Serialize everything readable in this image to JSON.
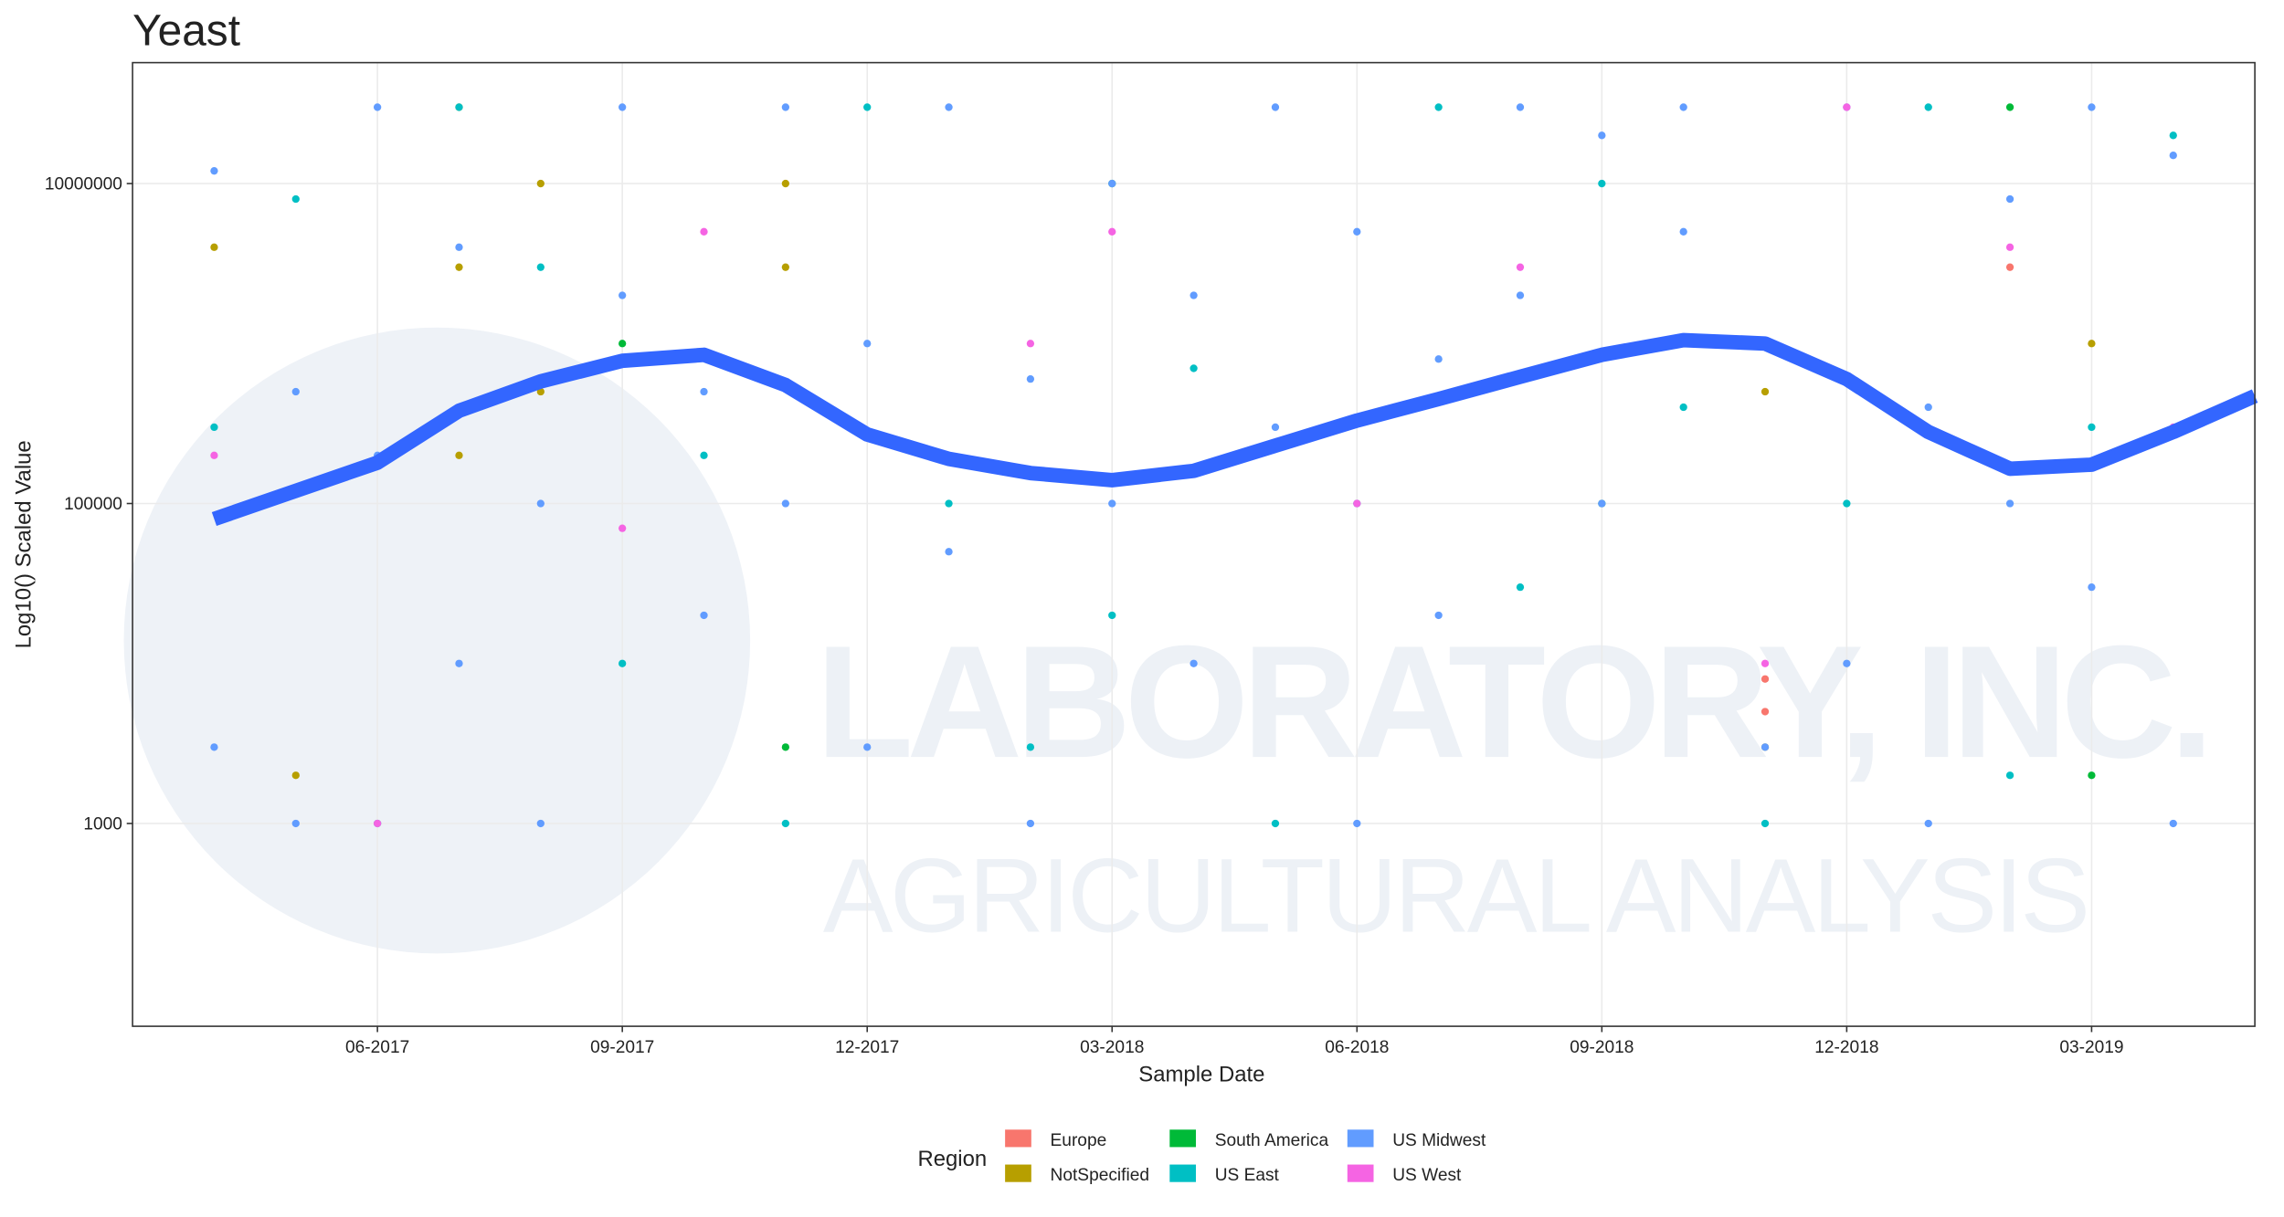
{
  "chart_data": {
    "type": "scatter",
    "title": "Yeast",
    "x_label": "Sample Date",
    "y_label": "Log10() Scaled Value",
    "y_log": true,
    "grid": true,
    "ylim": [
      54,
      57000000
    ],
    "yticks": [
      1000,
      100000,
      10000000
    ],
    "xlim": [
      "2017-03",
      "2019-05"
    ],
    "xticks": [
      {
        "value": "2017-06",
        "label": "06-2017"
      },
      {
        "value": "2017-09",
        "label": "09-2017"
      },
      {
        "value": "2017-12",
        "label": "12-2017"
      },
      {
        "value": "2018-03",
        "label": "03-2018"
      },
      {
        "value": "2018-06",
        "label": "06-2018"
      },
      {
        "value": "2018-09",
        "label": "09-2018"
      },
      {
        "value": "2018-12",
        "label": "12-2018"
      },
      {
        "value": "2019-03",
        "label": "03-2019"
      }
    ],
    "legend_title": "Region",
    "legend_position": "bottom",
    "watermark": [
      "LABORATORY, INC.",
      "AGRICULTURAL ANALYSIS"
    ],
    "series": [
      {
        "name": "Europe",
        "color": "#f8766d",
        "x": [
          "2018-11",
          "2019-02",
          "2018-11"
        ],
        "values": [
          8000,
          3000000,
          5000
        ]
      },
      {
        "name": "NotSpecified",
        "color": "#b79f00",
        "x": [
          "2017-04",
          "2017-05",
          "2017-07",
          "2017-07",
          "2017-07",
          "2017-08",
          "2017-08",
          "2017-11",
          "2017-11",
          "2018-11",
          "2018-11",
          "2019-03"
        ],
        "values": [
          4000000,
          2000,
          30000000,
          3000000,
          200000,
          10000000,
          500000,
          10000000,
          3000000,
          3000,
          500000,
          1000000
        ]
      },
      {
        "name": "South America",
        "color": "#00ba38",
        "x": [
          "2017-09",
          "2017-11",
          "2018-03",
          "2018-09",
          "2019-02",
          "2019-03"
        ],
        "values": [
          1000000,
          3000,
          10000000,
          100000,
          30000000,
          2000
        ]
      },
      {
        "name": "US East",
        "color": "#00bfc4",
        "x": [
          "2017-04",
          "2017-05",
          "2017-06",
          "2017-07",
          "2017-08",
          "2017-09",
          "2017-10",
          "2017-11",
          "2017-12",
          "2018-01",
          "2018-02",
          "2018-03",
          "2018-04",
          "2018-05",
          "2018-06",
          "2018-07",
          "2018-08",
          "2018-09",
          "2018-10",
          "2018-11",
          "2018-12",
          "2019-01",
          "2019-02",
          "2019-03",
          "2019-04"
        ],
        "values": [
          300000,
          8000000,
          1000,
          30000000,
          3000000,
          10000,
          200000,
          1000,
          30000000,
          100000,
          3000,
          20000,
          700000,
          1000,
          100000,
          30000000,
          30000,
          10000000,
          400000,
          1000,
          100000,
          30000000,
          2000,
          300000,
          20000000
        ]
      },
      {
        "name": "US Midwest",
        "color": "#619cff",
        "x": [
          "2017-04",
          "2017-04",
          "2017-05",
          "2017-05",
          "2017-06",
          "2017-06",
          "2017-07",
          "2017-07",
          "2017-08",
          "2017-08",
          "2017-09",
          "2017-09",
          "2017-10",
          "2017-10",
          "2017-11",
          "2017-11",
          "2017-12",
          "2017-12",
          "2018-01",
          "2018-01",
          "2018-02",
          "2018-02",
          "2018-03",
          "2018-03",
          "2018-04",
          "2018-04",
          "2018-05",
          "2018-05",
          "2018-06",
          "2018-06",
          "2018-07",
          "2018-07",
          "2018-08",
          "2018-08",
          "2018-09",
          "2018-09",
          "2018-10",
          "2018-10",
          "2018-11",
          "2018-11",
          "2018-12",
          "2018-12",
          "2019-01",
          "2019-01",
          "2019-02",
          "2019-02",
          "2019-03",
          "2019-03",
          "2019-04",
          "2019-04"
        ],
        "values": [
          12000000,
          3000,
          500000,
          1000,
          30000000,
          200000,
          4000000,
          10000,
          100000,
          1000,
          30000000,
          2000000,
          500000,
          20000,
          30000000,
          100000,
          1000000,
          3000,
          30000000,
          50000,
          600000,
          1000,
          10000000,
          100000,
          2000000,
          10000,
          30000000,
          300000,
          5000000,
          1000,
          800000,
          20000,
          30000000,
          2000000,
          20000000,
          100000,
          30000000,
          5000000,
          1000000,
          3000,
          30000000,
          10000,
          400000,
          1000,
          8000000,
          100000,
          30000000,
          30000,
          15000000,
          1000
        ]
      },
      {
        "name": "US West",
        "color": "#f564e3",
        "x": [
          "2017-04",
          "2017-06",
          "2017-09",
          "2017-10",
          "2018-02",
          "2018-03",
          "2018-06",
          "2018-08",
          "2018-11",
          "2018-12",
          "2019-02",
          "2019-04"
        ],
        "values": [
          200000,
          1000,
          70000,
          5000000,
          1000000,
          5000000,
          100000,
          3000000,
          10000,
          30000000,
          4000000,
          300000
        ]
      }
    ],
    "smooth": {
      "color": "#3366ff",
      "x": [
        "2017-04",
        "2017-05",
        "2017-06",
        "2017-07",
        "2017-08",
        "2017-09",
        "2017-10",
        "2017-11",
        "2017-12",
        "2018-01",
        "2018-02",
        "2018-03",
        "2018-04",
        "2018-05",
        "2018-06",
        "2018-07",
        "2018-08",
        "2018-09",
        "2018-10",
        "2018-11",
        "2018-12",
        "2019-01",
        "2019-02",
        "2019-03",
        "2019-04",
        "2019-05"
      ],
      "values": [
        80000,
        120000,
        180000,
        380000,
        580000,
        780000,
        850000,
        550000,
        270000,
        190000,
        155000,
        140000,
        160000,
        230000,
        330000,
        450000,
        620000,
        850000,
        1050000,
        1000000,
        600000,
        280000,
        165000,
        175000,
        280000,
        470000
      ]
    }
  }
}
